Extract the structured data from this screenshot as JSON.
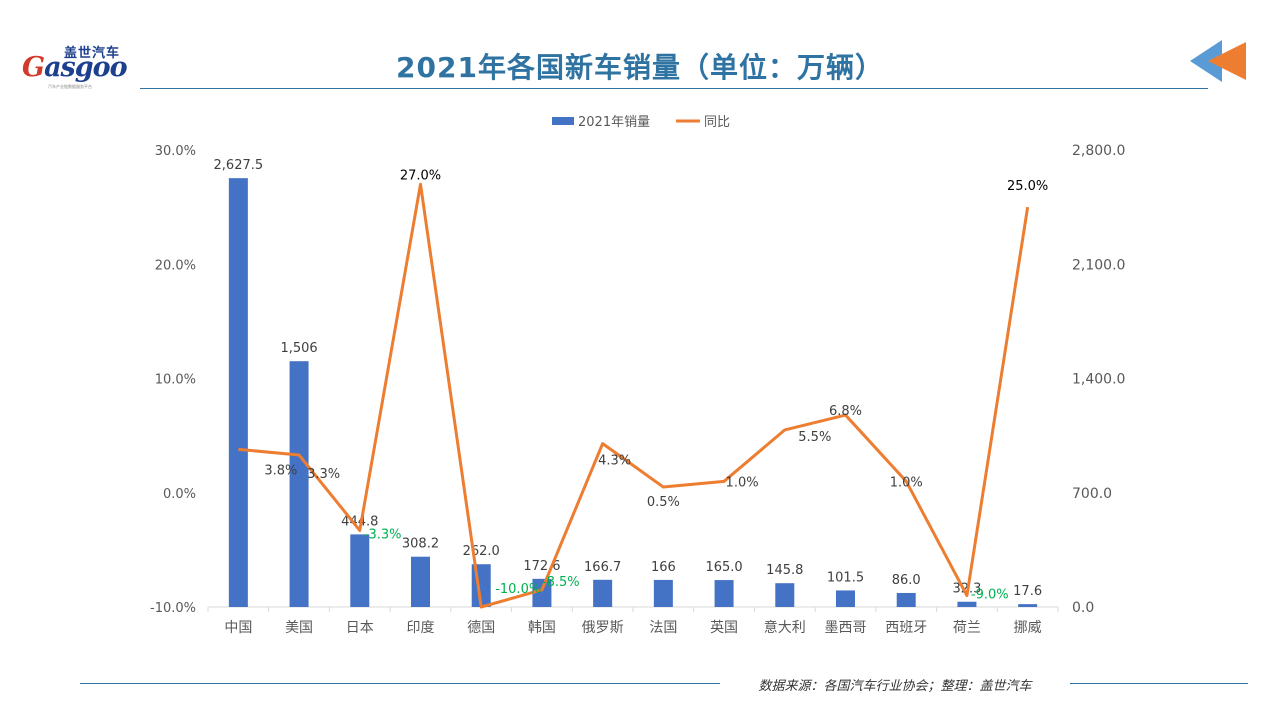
{
  "header": {
    "logo_cn": "盖世汽车",
    "logo_en_g": "G",
    "logo_en_rest": "asgoo",
    "logo_tagline": "汽车产业链数据服务平台",
    "title": "2021年各国新车销量（单位：万辆）"
  },
  "footer": {
    "source": "数据来源：各国汽车行业协会；整理：盖世汽车"
  },
  "colors": {
    "bar": "#4472c4",
    "line": "#ed7d31",
    "title": "#2f73a2",
    "negative_label": "#00b050"
  },
  "chart_data": {
    "type": "bar",
    "legend": [
      "2021年销量",
      "同比"
    ],
    "legend_position": "top-center",
    "categories": [
      "中国",
      "美国",
      "日本",
      "印度",
      "德国",
      "韩国",
      "俄罗斯",
      "法国",
      "英国",
      "意大利",
      "墨西哥",
      "西班牙",
      "荷兰",
      "挪威"
    ],
    "series": [
      {
        "name": "2021年销量",
        "type": "bar",
        "axis": "right",
        "values": [
          2627.5,
          1506,
          444.8,
          308.2,
          262.0,
          172.6,
          166.7,
          166,
          165.0,
          145.8,
          101.5,
          86.0,
          32.3,
          17.6
        ],
        "labels": [
          "2,627.5",
          "1,506",
          "444.8",
          "308.2",
          "262.0",
          "172.6",
          "166.7",
          "166",
          "165.0",
          "145.8",
          "101.5",
          "86.0",
          "32.3",
          "17.6"
        ]
      },
      {
        "name": "同比",
        "type": "line",
        "axis": "left",
        "values": [
          3.8,
          3.3,
          -3.3,
          27.0,
          -10.0,
          -8.5,
          4.3,
          0.5,
          1.0,
          5.5,
          6.8,
          1.0,
          -9.0,
          25.0
        ],
        "labels": [
          "3.8%",
          "3.3%",
          "-3.3%",
          "27.0%",
          "-10.0%",
          "-8.5%",
          "4.3%",
          "0.5%",
          "1.0%",
          "5.5%",
          "6.8%",
          "1.0%",
          "-9.0%",
          "25.0%"
        ]
      }
    ],
    "left_axis": {
      "min": -10,
      "max": 30,
      "ticks": [
        -10,
        0,
        10,
        20,
        30
      ],
      "tick_labels": [
        "-10.0%",
        "0.0%",
        "10.0%",
        "20.0%",
        "30.0%"
      ]
    },
    "right_axis": {
      "min": 0,
      "max": 2800,
      "ticks": [
        0,
        700,
        1400,
        2100,
        2800
      ],
      "tick_labels": [
        "0.0",
        "700.0",
        "1,400.0",
        "2,100.0",
        "2,800.0"
      ]
    },
    "grid": false
  }
}
